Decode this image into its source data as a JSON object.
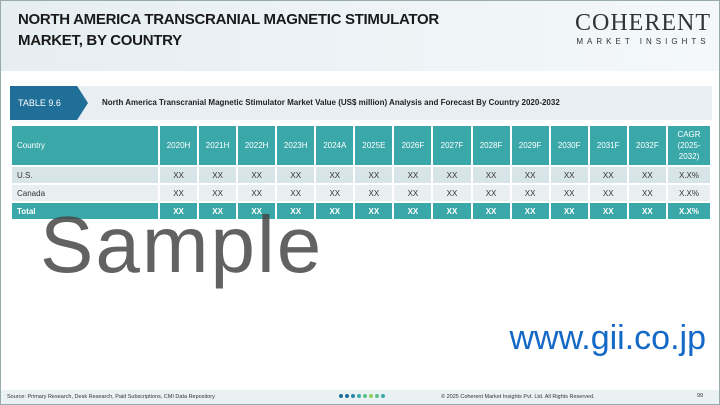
{
  "header": {
    "title": "NORTH AMERICA TRANSCRANIAL MAGNETIC STIMULATOR MARKET, BY COUNTRY",
    "logo_main": "COHERENT",
    "logo_sub": "MARKET INSIGHTS"
  },
  "table": {
    "label": "TABLE 9.6",
    "description": "North America Transcranial Magnetic Stimulator Market Value (US$ million) Analysis and Forecast By Country 2020-2032",
    "columns": [
      "Country",
      "2020H",
      "2021H",
      "2022H",
      "2023H",
      "2024A",
      "2025E",
      "2026F",
      "2027F",
      "2028F",
      "2029F",
      "2030F",
      "2031F",
      "2032F",
      "CAGR (2025-2032)"
    ],
    "rows": [
      [
        "U.S.",
        "XX",
        "XX",
        "XX",
        "XX",
        "XX",
        "XX",
        "XX",
        "XX",
        "XX",
        "XX",
        "XX",
        "XX",
        "XX",
        "X.X%"
      ],
      [
        "Canada",
        "XX",
        "XX",
        "XX",
        "XX",
        "XX",
        "XX",
        "XX",
        "XX",
        "XX",
        "XX",
        "XX",
        "XX",
        "XX",
        "X.X%"
      ],
      [
        "Total",
        "XX",
        "XX",
        "XX",
        "XX",
        "XX",
        "XX",
        "XX",
        "XX",
        "XX",
        "XX",
        "XX",
        "XX",
        "XX",
        "X.X%"
      ]
    ]
  },
  "footer": {
    "source": "Source: Primary Research, Desk Research, Paid Subscriptions, CMI Data Repository",
    "copyright": "© 2025 Coherent Market Insights Pvt. Ltd. All Rights Reserved.",
    "page": "99",
    "dot_colors": [
      "#1f6f98",
      "#1f6f98",
      "#2a86a8",
      "#3aa7a8",
      "#5cbf8a",
      "#8fcf5a",
      "#5cbf8a",
      "#3aa7a8"
    ]
  },
  "watermark": {
    "sample": "Sample",
    "site": "www.gii.co.jp"
  },
  "colors": {
    "accent": "#3aa7a8",
    "label": "#1f6f98",
    "site": "#1469c6"
  }
}
